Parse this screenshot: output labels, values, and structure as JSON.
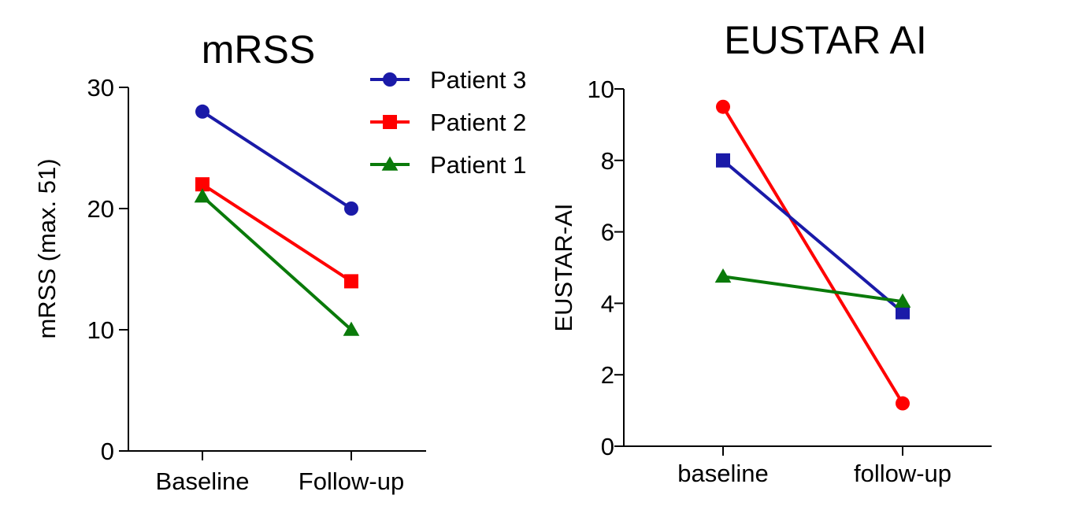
{
  "chart_data": [
    {
      "type": "line",
      "title": "mRSS",
      "xlabel": "",
      "ylabel": "mRSS (max. 51)",
      "categories": [
        "Baseline",
        "Follow-up"
      ],
      "ylim": [
        0,
        30
      ],
      "yticks": [
        "0",
        "10",
        "20",
        "30"
      ],
      "series": [
        {
          "name": "Patient 3",
          "color": "#1a1aa8",
          "marker": "circle",
          "values": [
            28,
            20
          ]
        },
        {
          "name": "Patient 2",
          "color": "#ff0000",
          "marker": "square",
          "values": [
            22,
            14
          ]
        },
        {
          "name": "Patient 1",
          "color": "#0a7a0a",
          "marker": "triangle",
          "values": [
            21,
            10
          ]
        }
      ],
      "legend": "top-right"
    },
    {
      "type": "line",
      "title": "EUSTAR AI",
      "xlabel": "",
      "ylabel": "EUSTAR-AI",
      "categories": [
        "baseline",
        "follow-up"
      ],
      "ylim": [
        0,
        10
      ],
      "yticks": [
        "0",
        "2",
        "4",
        "6",
        "8",
        "10"
      ],
      "series": [
        {
          "color": "#ff0000",
          "marker": "circle",
          "values": [
            9.5,
            1.2
          ]
        },
        {
          "color": "#1a1aa8",
          "marker": "square",
          "values": [
            8.0,
            3.75
          ]
        },
        {
          "color": "#0a7a0a",
          "marker": "triangle",
          "values": [
            4.75,
            4.05
          ]
        }
      ]
    }
  ]
}
